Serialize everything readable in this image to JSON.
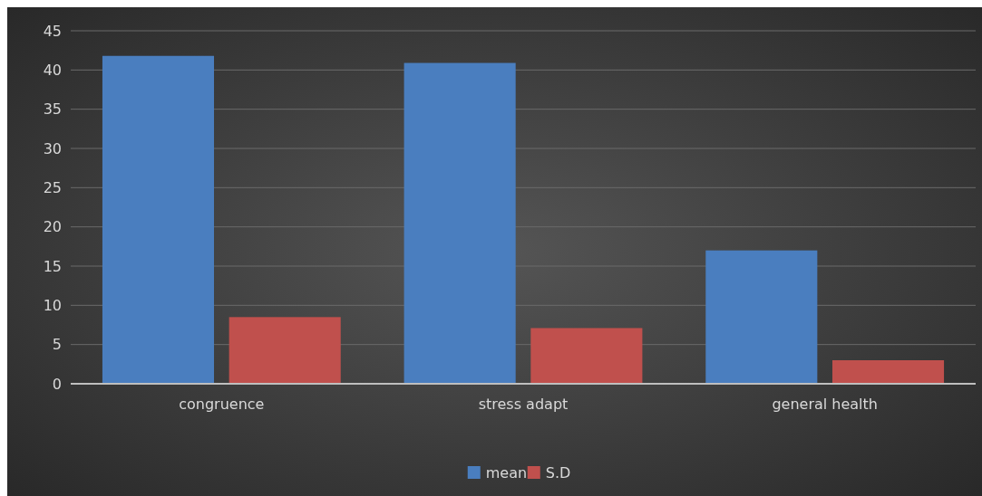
{
  "chart_data": {
    "type": "bar",
    "categories": [
      "congruence",
      "stress adapt",
      "general health"
    ],
    "series": [
      {
        "name": "mean",
        "color": "#4a7ebf",
        "values": [
          41.8,
          40.9,
          17
        ]
      },
      {
        "name": "S.D",
        "color": "#c0504d",
        "values": [
          8.5,
          7.1,
          3
        ]
      }
    ],
    "ylim": [
      0,
      45
    ],
    "yticks": [
      0,
      5,
      10,
      15,
      20,
      25,
      30,
      35,
      40,
      45
    ],
    "grid": "y",
    "legend": "bottom"
  }
}
